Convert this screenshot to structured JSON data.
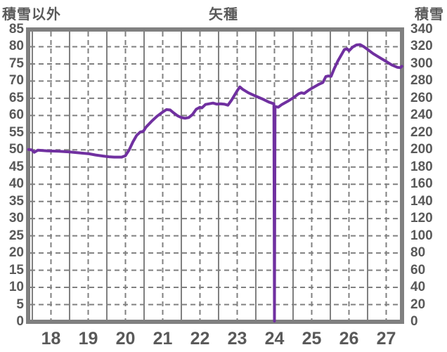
{
  "titles": {
    "left_axis_title": "積雪以外",
    "chart_title": "矢種",
    "right_axis_title": "積雪"
  },
  "chart_data": {
    "type": "line",
    "title": "矢種",
    "left_axis": {
      "label": "積雪以外",
      "min": 0,
      "max": 85,
      "step": 5,
      "ticks": [
        85,
        80,
        75,
        70,
        65,
        60,
        55,
        50,
        45,
        40,
        35,
        30,
        25,
        20,
        15,
        10,
        5,
        0
      ]
    },
    "right_axis": {
      "label": "積雪",
      "min": 0,
      "max": 340,
      "step": 20,
      "ticks": [
        340,
        320,
        300,
        280,
        260,
        240,
        220,
        200,
        180,
        160,
        140,
        120,
        100,
        80,
        60,
        40,
        20,
        0
      ]
    },
    "x_axis": {
      "ticks": [
        18,
        19,
        20,
        21,
        22,
        23,
        24,
        25,
        26,
        27
      ],
      "range": [
        17.4,
        27.42
      ],
      "solid_gridlines_at": [
        17.5,
        18.5,
        19.5,
        20.5,
        21.5,
        22.5,
        23.5,
        24.5,
        25.5,
        26.5
      ],
      "dashed_gridlines_at": [
        18,
        19,
        20,
        21,
        22,
        23,
        24,
        25,
        26,
        27
      ]
    },
    "grid": {
      "horizontal_dashed_step": 5,
      "legend": "none"
    },
    "colors": {
      "line": "#7030A0",
      "grid": "#808080",
      "border": "#808080",
      "text": "#595959",
      "background": "#FFFFFF"
    },
    "series": [
      {
        "name": "積雪",
        "axis": "left",
        "note": "right axis value = left axis value x 4; spike to 0 at x=24",
        "points": [
          [
            17.4,
            50.1
          ],
          [
            17.48,
            50.0
          ],
          [
            17.55,
            49.3
          ],
          [
            17.65,
            49.9
          ],
          [
            17.9,
            49.7
          ],
          [
            18.2,
            49.6
          ],
          [
            18.5,
            49.4
          ],
          [
            18.8,
            49.1
          ],
          [
            19.0,
            48.9
          ],
          [
            19.2,
            48.5
          ],
          [
            19.4,
            48.2
          ],
          [
            19.55,
            48.0
          ],
          [
            19.7,
            47.9
          ],
          [
            19.9,
            47.9
          ],
          [
            20.0,
            48.3
          ],
          [
            20.1,
            50.0
          ],
          [
            20.2,
            52.3
          ],
          [
            20.3,
            54.2
          ],
          [
            20.4,
            55.2
          ],
          [
            20.48,
            55.4
          ],
          [
            20.55,
            56.6
          ],
          [
            20.7,
            58.3
          ],
          [
            20.85,
            59.8
          ],
          [
            21.0,
            61.0
          ],
          [
            21.1,
            61.7
          ],
          [
            21.2,
            61.6
          ],
          [
            21.3,
            60.7
          ],
          [
            21.4,
            59.9
          ],
          [
            21.5,
            59.4
          ],
          [
            21.6,
            59.2
          ],
          [
            21.7,
            59.4
          ],
          [
            21.8,
            60.3
          ],
          [
            21.9,
            61.8
          ],
          [
            22.0,
            62.4
          ],
          [
            22.05,
            62.2
          ],
          [
            22.15,
            63.2
          ],
          [
            22.25,
            63.4
          ],
          [
            22.35,
            63.6
          ],
          [
            22.45,
            63.3
          ],
          [
            22.55,
            63.4
          ],
          [
            22.65,
            63.3
          ],
          [
            22.75,
            63.0
          ],
          [
            22.85,
            64.5
          ],
          [
            23.0,
            67.2
          ],
          [
            23.07,
            68.3
          ],
          [
            23.15,
            67.6
          ],
          [
            23.3,
            66.6
          ],
          [
            23.5,
            65.6
          ],
          [
            23.7,
            64.7
          ],
          [
            23.85,
            63.9
          ],
          [
            23.985,
            63.4
          ],
          [
            24.0,
            0.2
          ],
          [
            24.015,
            62.6
          ],
          [
            24.1,
            62.4
          ],
          [
            24.2,
            63.2
          ],
          [
            24.35,
            64.1
          ],
          [
            24.5,
            65.1
          ],
          [
            24.65,
            66.3
          ],
          [
            24.72,
            66.6
          ],
          [
            24.8,
            66.4
          ],
          [
            24.9,
            67.2
          ],
          [
            25.0,
            67.9
          ],
          [
            25.1,
            68.5
          ],
          [
            25.2,
            69.1
          ],
          [
            25.3,
            69.6
          ],
          [
            25.38,
            71.3
          ],
          [
            25.45,
            71.5
          ],
          [
            25.52,
            71.4
          ],
          [
            25.6,
            73.5
          ],
          [
            25.7,
            75.8
          ],
          [
            25.8,
            77.7
          ],
          [
            25.88,
            79.2
          ],
          [
            25.95,
            79.4
          ],
          [
            26.0,
            78.8
          ],
          [
            26.1,
            79.9
          ],
          [
            26.2,
            80.5
          ],
          [
            26.3,
            80.6
          ],
          [
            26.4,
            80.0
          ],
          [
            26.5,
            79.2
          ],
          [
            26.65,
            78.0
          ],
          [
            26.8,
            77.0
          ],
          [
            27.0,
            75.7
          ],
          [
            27.15,
            74.7
          ],
          [
            27.3,
            74.0
          ],
          [
            27.38,
            73.9
          ],
          [
            27.42,
            74.3
          ]
        ]
      }
    ]
  }
}
